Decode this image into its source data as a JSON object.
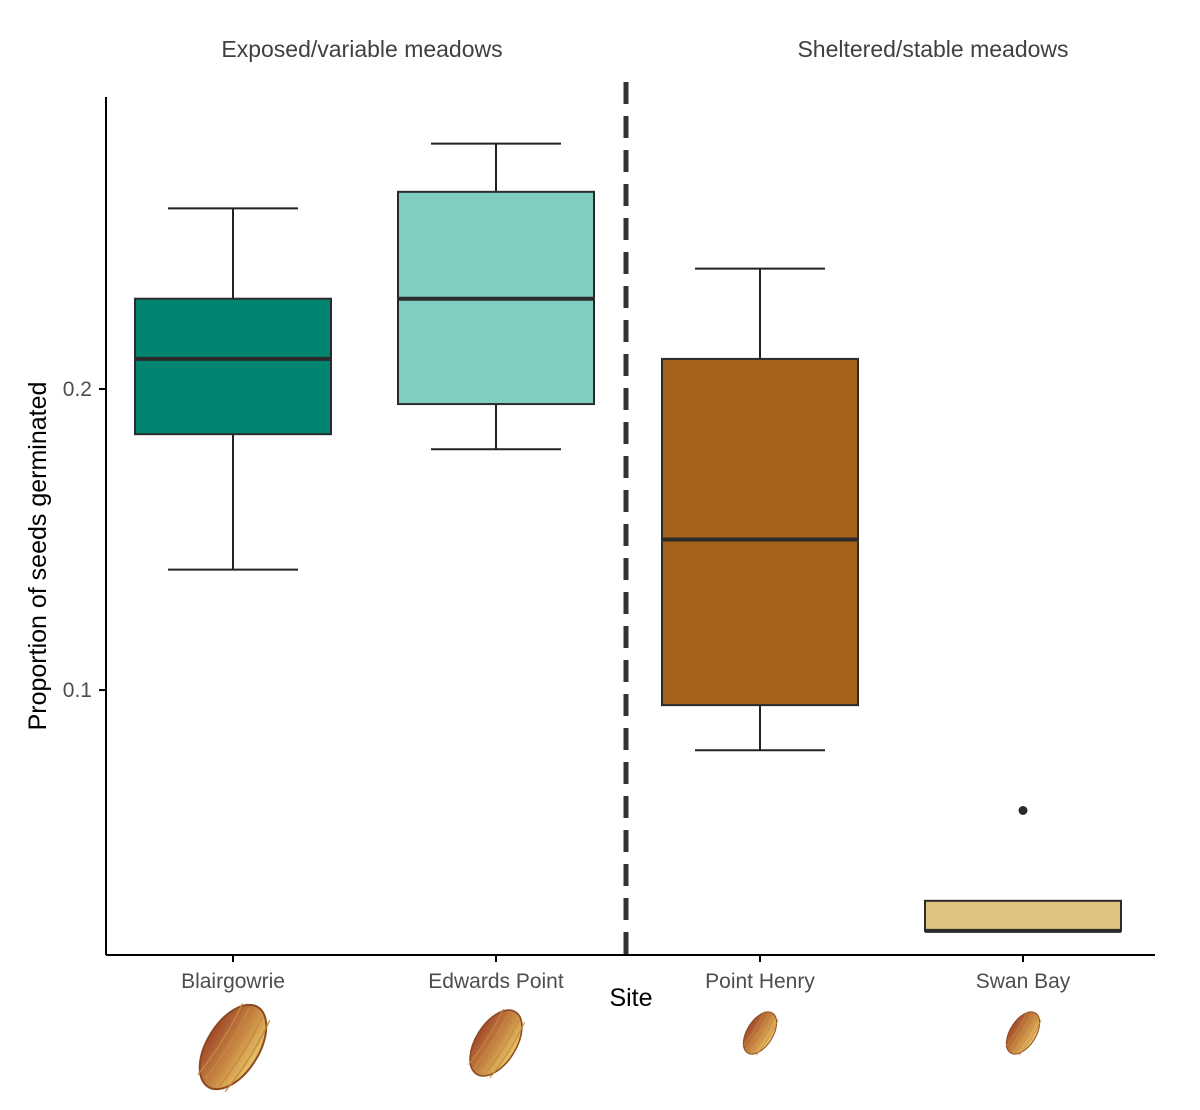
{
  "chart_data": {
    "type": "boxplot",
    "title": "",
    "xlabel": "Site",
    "ylabel": "Proportion of seeds germinated",
    "ylim": [
      0.012,
      0.297
    ],
    "yticks": [
      0.1,
      0.2
    ],
    "ytick_labels": [
      "0.1",
      "0.2"
    ],
    "groups": [
      {
        "label": "Exposed/variable meadows",
        "categories": [
          "Blairgowrie",
          "Edwards Point"
        ]
      },
      {
        "label": "Sheltered/stable meadows",
        "categories": [
          "Point Henry",
          "Swan Bay"
        ]
      }
    ],
    "divider": "dashed vertical line between Edwards Point and Point Henry",
    "categories": [
      "Blairgowrie",
      "Edwards Point",
      "Point Henry",
      "Swan Bay"
    ],
    "boxes": [
      {
        "site": "Blairgowrie",
        "min": 0.14,
        "q1": 0.185,
        "median": 0.21,
        "q3": 0.23,
        "max": 0.26,
        "outliers": [],
        "color": "#018571"
      },
      {
        "site": "Edwards Point",
        "min": 0.18,
        "q1": 0.195,
        "median": 0.23,
        "q3": 0.2655,
        "max": 0.2815,
        "outliers": [],
        "color": "#80cdc1"
      },
      {
        "site": "Point Henry",
        "min": 0.08,
        "q1": 0.095,
        "median": 0.15,
        "q3": 0.21,
        "max": 0.24,
        "outliers": [],
        "color": "#a6611a"
      },
      {
        "site": "Swan Bay",
        "min": 0.02,
        "q1": 0.02,
        "median": 0.02,
        "q3": 0.03,
        "max": 0.03,
        "outliers": [
          0.06
        ],
        "color": "#dfc27d"
      }
    ],
    "seed_icon_scale": [
      1.0,
      0.78,
      0.5,
      0.5
    ]
  }
}
